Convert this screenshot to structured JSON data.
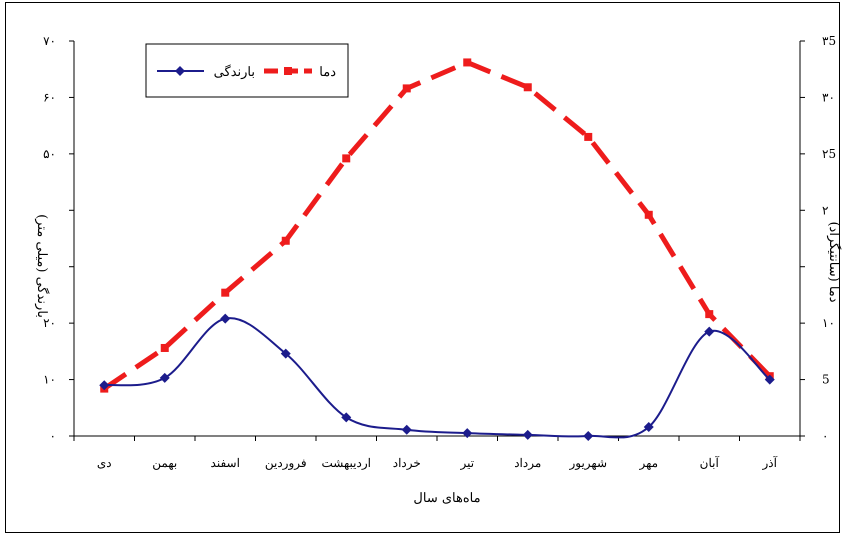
{
  "chart_data": {
    "type": "line",
    "categories": [
      "دی",
      "بهمن",
      "اسفند",
      "فروردین",
      "اردیبهشت",
      "خرداد",
      "تیر",
      "مرداد",
      "شهریور",
      "مهر",
      "آبان",
      "آذر"
    ],
    "series": [
      {
        "name": "بارندگی",
        "axis": "left",
        "color": "#1c1c8c",
        "marker": "diamond",
        "line": "solid",
        "values": [
          9,
          10.3,
          20.8,
          14.6,
          3.3,
          1.1,
          0.5,
          0.2,
          0,
          1.6,
          18.5,
          10
        ]
      },
      {
        "name": "دما",
        "axis": "right",
        "color": "#ee1c1c",
        "marker": "square",
        "line": "dashed",
        "values": [
          4.2,
          7.8,
          12.7,
          17.3,
          24.6,
          30.8,
          33.1,
          30.9,
          26.5,
          19.6,
          10.8,
          5.3
        ]
      }
    ],
    "xlabel": "ماه‌های سال",
    "ylabel_left": "بارندگی (میلی متر)",
    "ylabel_right": "دما (سانتیگراد)",
    "ylim_left": [
      0,
      70
    ],
    "ylim_right": [
      0,
      35
    ],
    "yticks_left": [
      "۰",
      "۱۰",
      "۲۰",
      "",
      "",
      "۵۰",
      "۶۰",
      "۷۰"
    ],
    "yticks_right": [
      "۰",
      "5",
      "۱۰",
      "",
      "۲",
      "۲5",
      "۳۰",
      "۳5"
    ],
    "legend_position": "top-left",
    "grid": false
  }
}
